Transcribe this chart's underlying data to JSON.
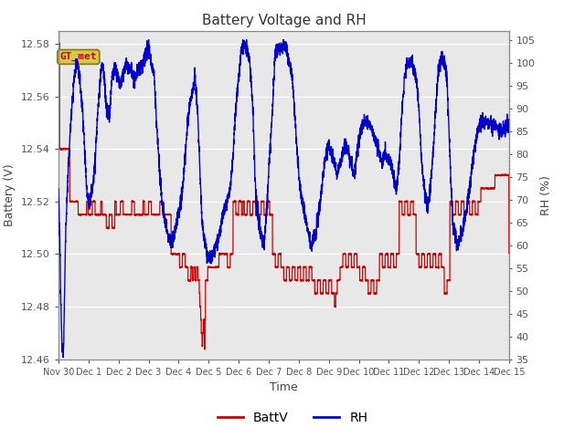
{
  "title": "Battery Voltage and RH",
  "xlabel": "Time",
  "ylabel_left": "Battery (V)",
  "ylabel_right": "RH (%)",
  "ylim_left": [
    12.46,
    12.585
  ],
  "ylim_right": [
    35,
    107
  ],
  "yticks_left": [
    12.46,
    12.48,
    12.5,
    12.52,
    12.54,
    12.56,
    12.58
  ],
  "yticks_right": [
    35,
    40,
    45,
    50,
    55,
    60,
    65,
    70,
    75,
    80,
    85,
    90,
    95,
    100,
    105
  ],
  "xtick_labels": [
    "Nov 30",
    "Dec 1",
    "Dec 2",
    "Dec 3",
    "Dec 4",
    "Dec 5",
    "Dec 6",
    "Dec 7",
    "Dec 8",
    "Dec 9",
    "Dec 10",
    "Dec 11",
    "Dec 12",
    "Dec 13",
    "Dec 14",
    "Dec 15"
  ],
  "batt_color": "#cc0000",
  "rh_color": "#0000cc",
  "plot_bg_color": "#e8e8e8",
  "annotation_text": "GT_met",
  "annotation_bg": "#d4c84a",
  "annotation_border": "#8a7a00",
  "annotation_text_color": "#cc0000",
  "legend_batt": "BattV",
  "legend_rh": "RH",
  "fig_bg": "#ffffff",
  "grid_color": "#ffffff",
  "spine_color": "#888888",
  "tick_color": "#555555",
  "label_color": "#444444"
}
